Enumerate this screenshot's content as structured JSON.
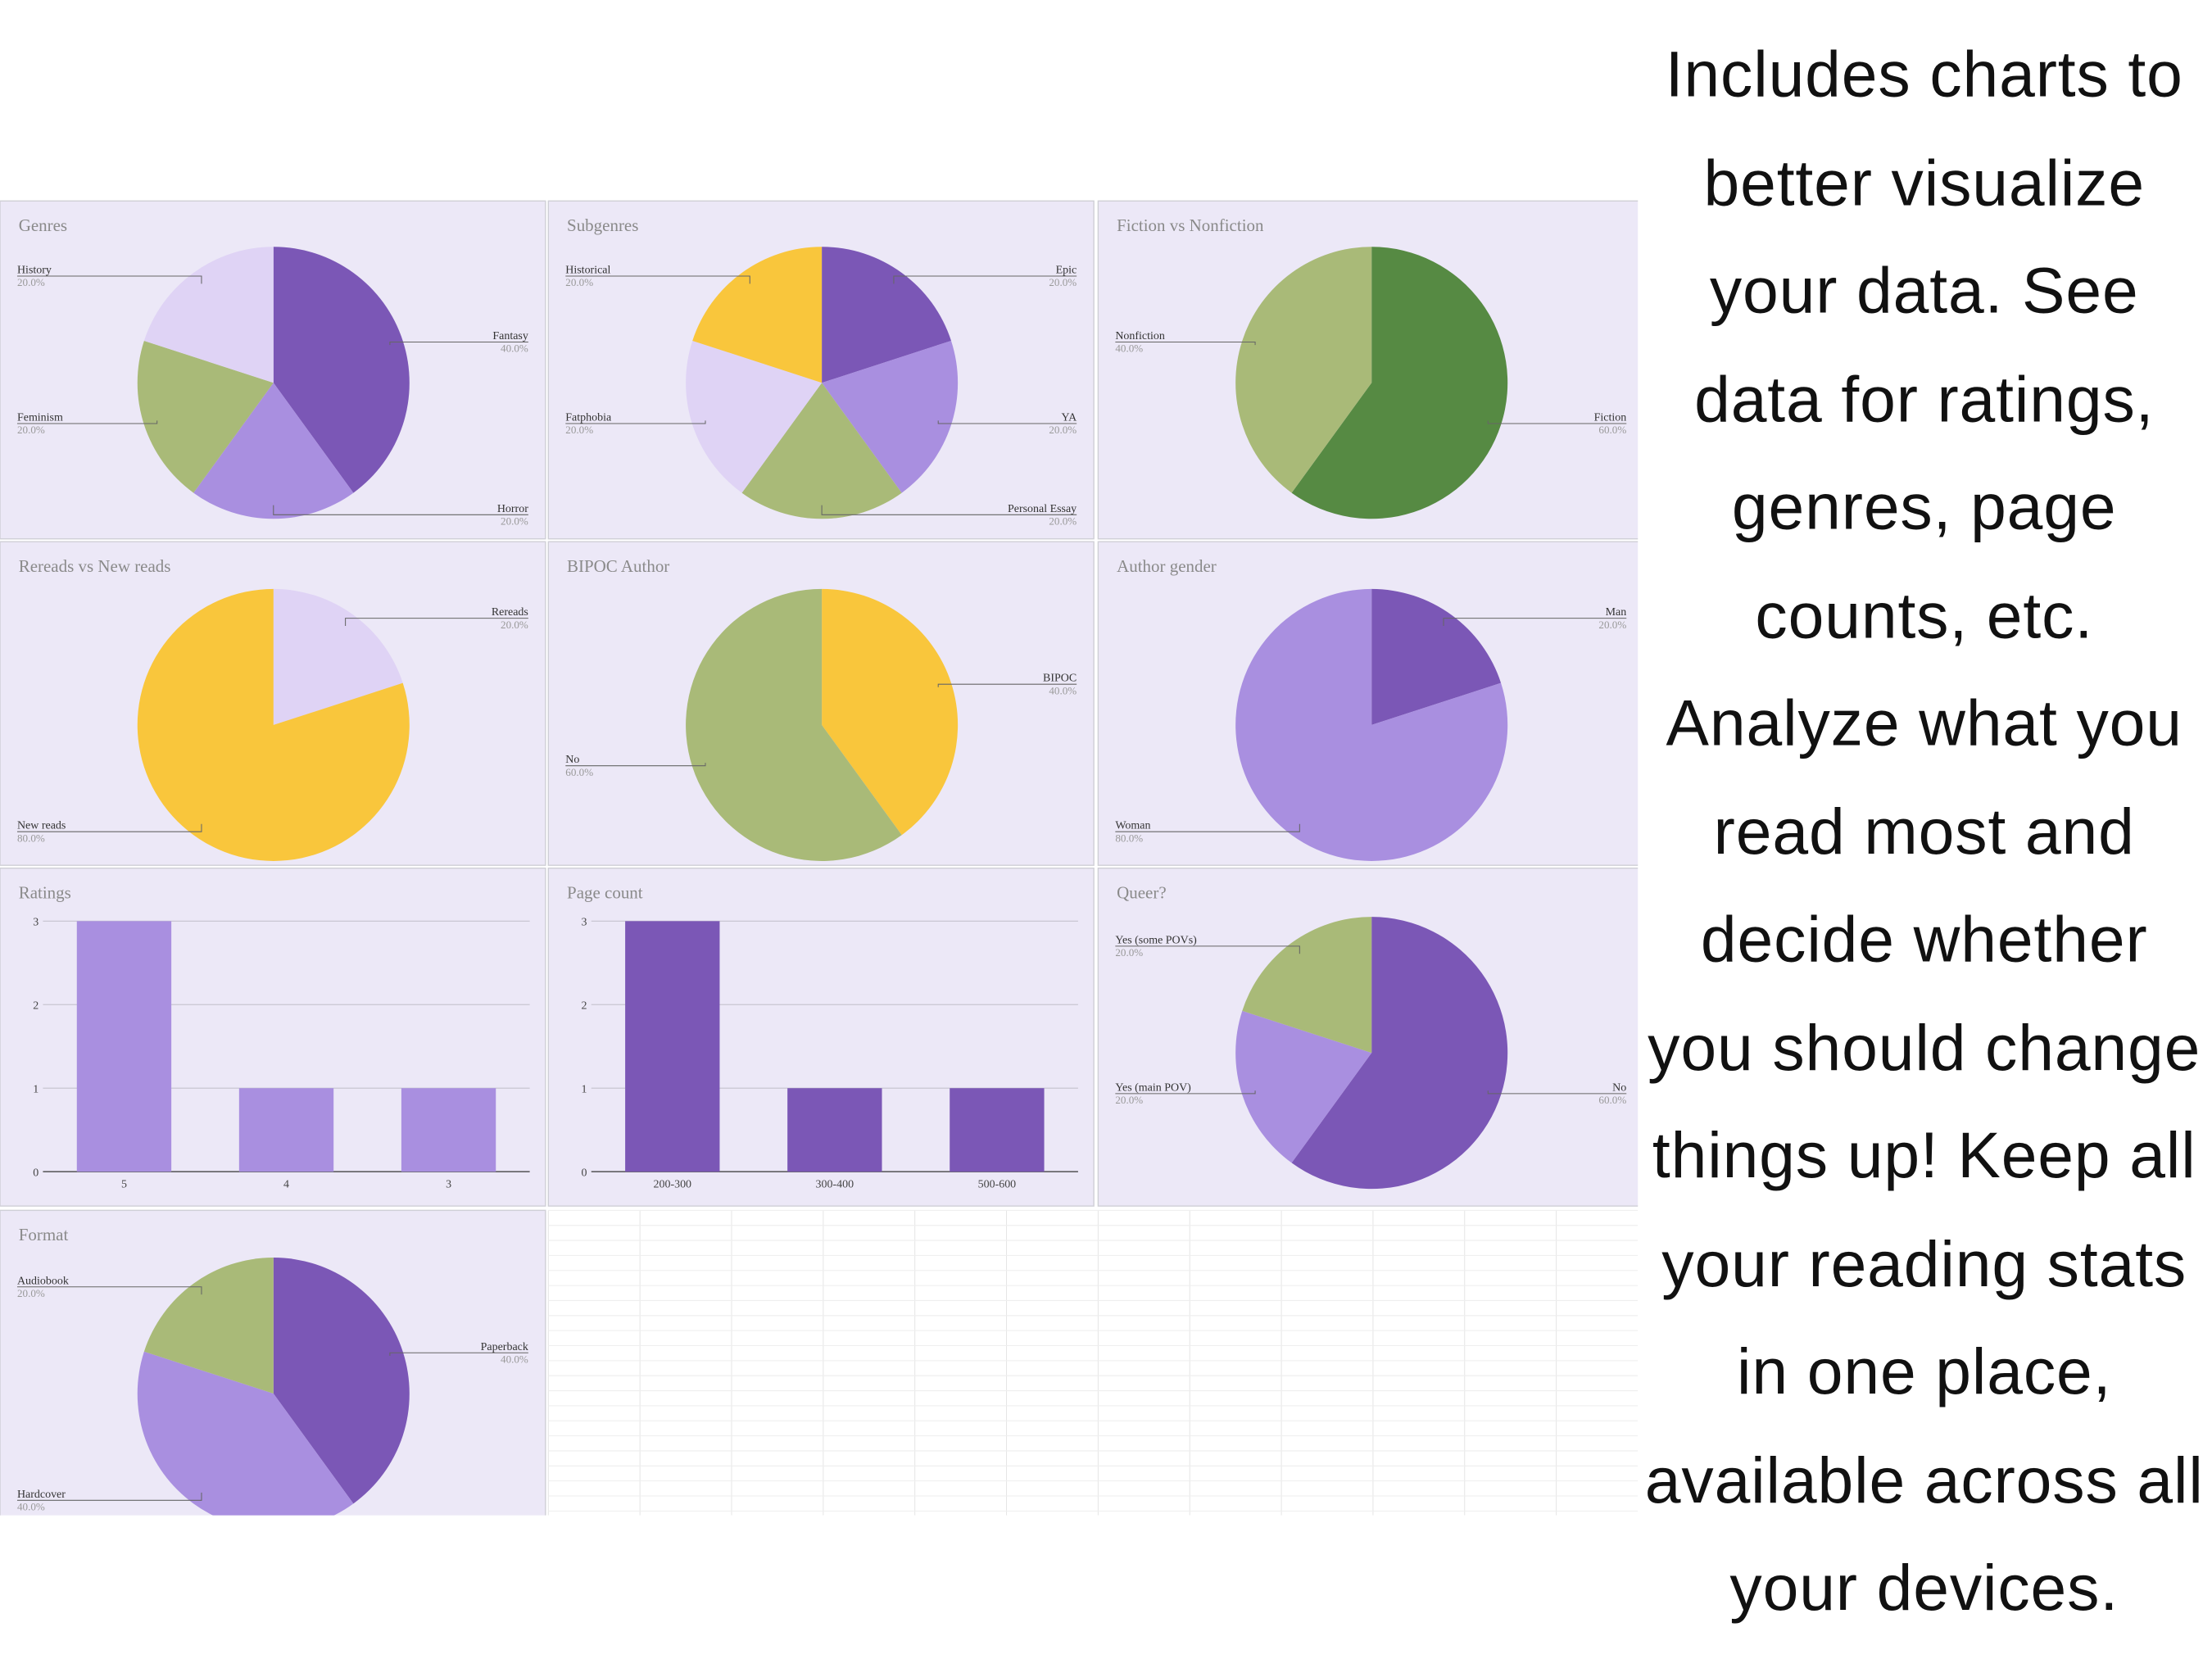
{
  "chart_data": [
    {
      "type": "pie",
      "title": "Genres",
      "categories": [
        "Fantasy",
        "Horror",
        "Feminism",
        "History"
      ],
      "values": [
        40,
        20,
        20,
        20
      ],
      "value_labels": [
        "40.0%",
        "20.0%",
        "20.0%",
        "20.0%"
      ],
      "colors": [
        "#7b57b6",
        "#a98fe0",
        "#a9ba78",
        "#dfd3f5"
      ]
    },
    {
      "type": "pie",
      "title": "Subgenres",
      "categories": [
        "Epic",
        "YA",
        "Personal Essay",
        "Fatphobia",
        "Historical"
      ],
      "values": [
        20,
        20,
        20,
        20,
        20
      ],
      "value_labels": [
        "20.0%",
        "20.0%",
        "20.0%",
        "20.0%",
        "20.0%"
      ],
      "colors": [
        "#7b57b6",
        "#a98fe0",
        "#a9ba78",
        "#dfd3f5",
        "#f9c63c"
      ]
    },
    {
      "type": "pie",
      "title": "Fiction vs Nonfiction",
      "categories": [
        "Fiction",
        "Nonfiction"
      ],
      "values": [
        60,
        40
      ],
      "value_labels": [
        "60.0%",
        "40.0%"
      ],
      "colors": [
        "#568a43",
        "#a9ba78"
      ]
    },
    {
      "type": "pie",
      "title": "Rereads vs New reads",
      "categories": [
        "Rereads",
        "New reads"
      ],
      "values": [
        20,
        80
      ],
      "value_labels": [
        "20.0%",
        "80.0%"
      ],
      "colors": [
        "#dfd3f5",
        "#f9c63c"
      ]
    },
    {
      "type": "pie",
      "title": "BIPOC Author",
      "categories": [
        "BIPOC",
        "No"
      ],
      "values": [
        40,
        60
      ],
      "value_labels": [
        "40.0%",
        "60.0%"
      ],
      "colors": [
        "#f9c63c",
        "#a9ba78"
      ]
    },
    {
      "type": "pie",
      "title": "Author gender",
      "categories": [
        "Man",
        "Woman"
      ],
      "values": [
        20,
        80
      ],
      "value_labels": [
        "20.0%",
        "80.0%"
      ],
      "colors": [
        "#7b57b6",
        "#a98fe0"
      ]
    },
    {
      "type": "bar",
      "title": "Ratings",
      "categories": [
        "5",
        "4",
        "3"
      ],
      "values": [
        3,
        1,
        1
      ],
      "color": "#a98fe0",
      "ylim": [
        0,
        3
      ],
      "yticks": [
        0,
        1,
        2,
        3
      ],
      "grid": true
    },
    {
      "type": "bar",
      "title": "Page count",
      "categories": [
        "200-300",
        "300-400",
        "500-600"
      ],
      "values": [
        3,
        1,
        1
      ],
      "color": "#7b57b6",
      "ylim": [
        0,
        3
      ],
      "yticks": [
        0,
        1,
        2,
        3
      ],
      "grid": true
    },
    {
      "type": "pie",
      "title": "Queer?",
      "categories": [
        "No",
        "Yes (main POV)",
        "Yes (some POVs)"
      ],
      "values": [
        60,
        20,
        20
      ],
      "value_labels": [
        "60.0%",
        "20.0%",
        "20.0%"
      ],
      "colors": [
        "#7b57b6",
        "#a98fe0",
        "#a9ba78"
      ]
    },
    {
      "type": "pie",
      "title": "Format",
      "categories": [
        "Paperback",
        "Hardcover",
        "Audiobook"
      ],
      "values": [
        40,
        40,
        20
      ],
      "value_labels": [
        "40.0%",
        "40.0%",
        "20.0%"
      ],
      "colors": [
        "#7b57b6",
        "#a98fe0",
        "#a9ba78"
      ]
    }
  ],
  "caption": "Includes charts to better visualize your data. See data for ratings, genres, page counts, etc. Analyze what you read most and decide whether you should change things up! Keep all your reading stats in one place, available across all your devices."
}
